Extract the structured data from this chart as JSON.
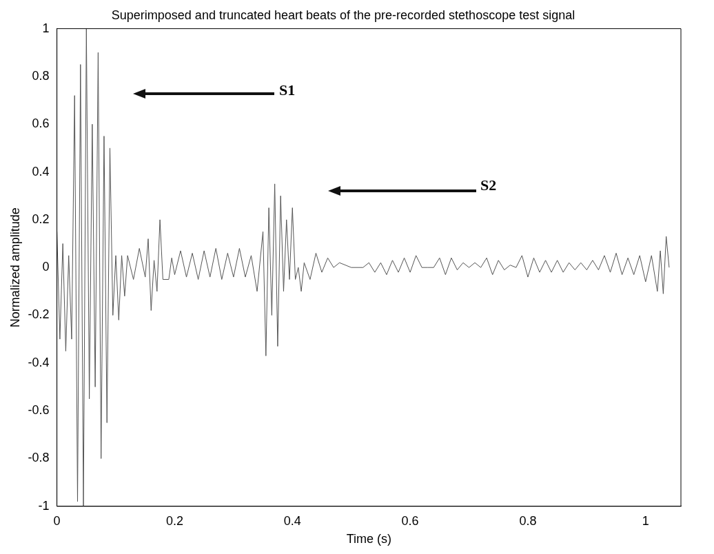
{
  "chart_data": {
    "type": "line",
    "title": "Superimposed and truncated heart beats of the pre-recorded stethoscope test signal",
    "xlabel": "Time (s)",
    "ylabel": "Normalized amplitude",
    "xlim": [
      0,
      1.06
    ],
    "xticks": [
      0,
      0.2,
      0.4,
      0.6,
      0.8,
      1
    ],
    "ylim": [
      -1,
      1
    ],
    "yticks": [
      -1,
      -0.8,
      -0.6,
      -0.4,
      -0.2,
      0,
      0.2,
      0.4,
      0.6,
      0.8,
      1
    ],
    "grid": false,
    "legend": false,
    "marker": "none",
    "line_style": "solid",
    "annotations": [
      "S1",
      "S2"
    ],
    "x": [
      0,
      0.005,
      0.01,
      0.015,
      0.02,
      0.025,
      0.03,
      0.035,
      0.04,
      0.045,
      0.05,
      0.055,
      0.06,
      0.065,
      0.07,
      0.075,
      0.08,
      0.085,
      0.09,
      0.095,
      0.1,
      0.105,
      0.11,
      0.115,
      0.12,
      0.13,
      0.14,
      0.15,
      0.155,
      0.16,
      0.165,
      0.17,
      0.175,
      0.18,
      0.19,
      0.195,
      0.2,
      0.21,
      0.22,
      0.23,
      0.24,
      0.25,
      0.26,
      0.27,
      0.28,
      0.29,
      0.3,
      0.31,
      0.32,
      0.33,
      0.34,
      0.35,
      0.355,
      0.36,
      0.365,
      0.37,
      0.375,
      0.38,
      0.385,
      0.39,
      0.395,
      0.4,
      0.405,
      0.41,
      0.415,
      0.42,
      0.43,
      0.44,
      0.45,
      0.46,
      0.47,
      0.48,
      0.5,
      0.52,
      0.53,
      0.54,
      0.55,
      0.56,
      0.57,
      0.58,
      0.59,
      0.6,
      0.61,
      0.62,
      0.63,
      0.64,
      0.65,
      0.66,
      0.67,
      0.68,
      0.69,
      0.7,
      0.71,
      0.72,
      0.73,
      0.74,
      0.75,
      0.76,
      0.77,
      0.78,
      0.79,
      0.8,
      0.81,
      0.82,
      0.83,
      0.84,
      0.85,
      0.86,
      0.87,
      0.88,
      0.89,
      0.9,
      0.91,
      0.92,
      0.93,
      0.94,
      0.95,
      0.96,
      0.97,
      0.98,
      0.99,
      1,
      1.01,
      1.02,
      1.025,
      1.03,
      1.035,
      1.04
    ],
    "series": [
      {
        "color": "#555555",
        "values": [
          0.15,
          -0.3,
          0.1,
          -0.35,
          0.05,
          -0.3,
          0.72,
          -0.98,
          0.85,
          -1,
          1,
          -0.55,
          0.6,
          -0.5,
          0.9,
          -0.8,
          0.55,
          -0.65,
          0.5,
          -0.2,
          0.05,
          -0.22,
          0.05,
          -0.12,
          0.05,
          -0.05,
          0.08,
          -0.04,
          0.12,
          -0.18,
          0.03,
          -0.1,
          0.2,
          -0.05,
          -0.05,
          0.04,
          -0.03,
          0.07,
          -0.04,
          0.06,
          -0.05,
          0.07,
          -0.04,
          0.08,
          -0.05,
          0.06,
          -0.04,
          0.08,
          -0.04,
          0.05,
          -0.1,
          0.15,
          -0.37,
          0.25,
          -0.2,
          0.35,
          -0.33,
          0.3,
          -0.1,
          0.2,
          -0.05,
          0.25,
          -0.05,
          0,
          -0.1,
          0.02,
          -0.05,
          0.06,
          -0.02,
          0.04,
          0,
          0.02,
          0,
          0,
          0.02,
          -0.02,
          0.02,
          -0.03,
          0.03,
          -0.02,
          0.04,
          -0.02,
          0.05,
          0,
          0,
          0,
          0.04,
          -0.03,
          0.04,
          -0.01,
          0.02,
          0,
          0.02,
          0,
          0.04,
          -0.03,
          0.03,
          -0.01,
          0.01,
          0,
          0.05,
          -0.04,
          0.04,
          -0.02,
          0.03,
          -0.02,
          0.03,
          -0.02,
          0.02,
          -0.01,
          0.02,
          -0.01,
          0.03,
          -0.01,
          0.05,
          -0.02,
          0.06,
          -0.03,
          0.04,
          -0.03,
          0.05,
          -0.06,
          0.05,
          -0.1,
          0.07,
          -0.11,
          0.13,
          0
        ]
      }
    ]
  }
}
